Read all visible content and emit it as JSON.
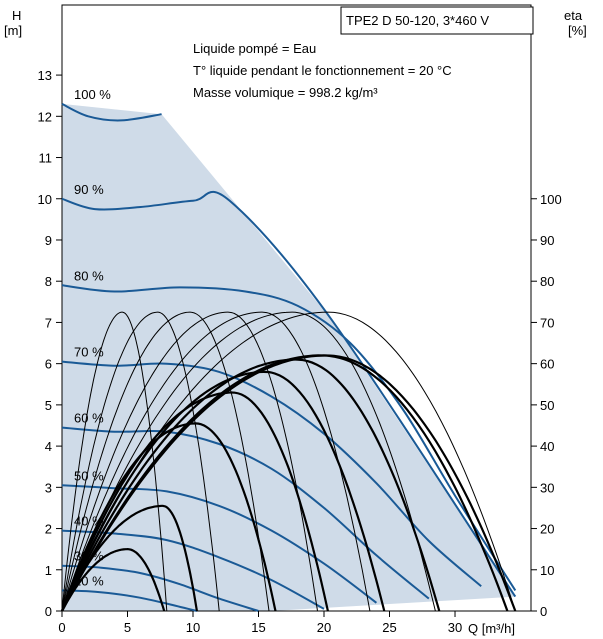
{
  "chart_data": {
    "type": "line",
    "title": "TPE2 D 50-120, 3*460 V",
    "notes": [
      "Liquide pompé = Eau",
      "T° liquide pendant le fonctionnement = 20 °C",
      "Masse volumique = 998.2 kg/m³"
    ],
    "y_axis": {
      "label_line1": "H",
      "label_line2": "[m]",
      "ticks": [
        0,
        1,
        2,
        3,
        4,
        5,
        6,
        7,
        8,
        9,
        10,
        11,
        12,
        13
      ],
      "range": [
        0,
        14.7
      ]
    },
    "y2_axis": {
      "label_line1": "eta",
      "label_line2": "[%]",
      "ticks": [
        0,
        10,
        20,
        30,
        40,
        50,
        60,
        70,
        80,
        90,
        100
      ],
      "range": [
        0,
        147
      ]
    },
    "x_axis": {
      "label": "Q [m³/h]",
      "ticks": [
        0,
        5,
        10,
        15,
        20,
        25,
        30
      ],
      "range": [
        0,
        35.8
      ]
    },
    "colors": {
      "head": "#1a5a96",
      "fill": "#cfdbe8",
      "efficiency": "#000000",
      "frame": "#000000"
    },
    "operating_region": [
      [
        0,
        12.3
      ],
      [
        7.6,
        12.05
      ],
      [
        20.5,
        7.1
      ],
      [
        34.6,
        0.35
      ],
      [
        16,
        0
      ],
      [
        0,
        0
      ]
    ],
    "head_curves": [
      {
        "name": "100 %",
        "shape": [
          [
            0,
            12.3
          ],
          [
            2,
            12.0
          ],
          [
            4.5,
            11.9
          ],
          [
            7.6,
            12.05
          ]
        ]
      },
      {
        "name": "90 %",
        "shape": [
          [
            0,
            10.0
          ],
          [
            2.5,
            9.75
          ],
          [
            6,
            9.8
          ],
          [
            10,
            9.95
          ],
          [
            12.8,
            9.95
          ],
          [
            20.5,
            7.1
          ],
          [
            34.6,
            0.35
          ]
        ]
      },
      {
        "name": "80 %",
        "shape": [
          [
            0,
            7.9
          ],
          [
            4,
            7.75
          ],
          [
            9,
            7.85
          ],
          [
            14,
            7.75
          ],
          [
            18,
            7.4
          ],
          [
            22,
            6.5
          ],
          [
            26,
            4.9
          ],
          [
            30,
            2.8
          ],
          [
            34.6,
            0.5
          ]
        ]
      },
      {
        "name": "70 %",
        "shape": [
          [
            0,
            6.05
          ],
          [
            4,
            5.95
          ],
          [
            8,
            6.0
          ],
          [
            12,
            5.8
          ],
          [
            16,
            5.2
          ],
          [
            20,
            4.3
          ],
          [
            24,
            3.1
          ],
          [
            28,
            1.7
          ],
          [
            32,
            0.6
          ]
        ]
      },
      {
        "name": "60 %",
        "shape": [
          [
            0,
            4.45
          ],
          [
            4,
            4.35
          ],
          [
            8,
            4.35
          ],
          [
            12,
            4.05
          ],
          [
            16,
            3.45
          ],
          [
            20,
            2.5
          ],
          [
            24,
            1.35
          ],
          [
            28,
            0.3
          ]
        ]
      },
      {
        "name": "50 %",
        "shape": [
          [
            0,
            3.05
          ],
          [
            4,
            2.98
          ],
          [
            8,
            2.9
          ],
          [
            12,
            2.55
          ],
          [
            16,
            1.95
          ],
          [
            20,
            1.15
          ],
          [
            24,
            0.2
          ]
        ]
      },
      {
        "name": "40 %",
        "shape": [
          [
            0,
            1.95
          ],
          [
            4,
            1.88
          ],
          [
            8,
            1.72
          ],
          [
            12,
            1.3
          ],
          [
            16,
            0.75
          ],
          [
            20,
            0.05
          ]
        ]
      },
      {
        "name": "30 %",
        "shape": [
          [
            0,
            1.1
          ],
          [
            3,
            1.05
          ],
          [
            6,
            0.92
          ],
          [
            9,
            0.65
          ],
          [
            12,
            0.3
          ],
          [
            15,
            0.0
          ]
        ]
      },
      {
        "name": "20 %",
        "shape": [
          [
            0,
            0.5
          ],
          [
            2,
            0.48
          ],
          [
            4,
            0.42
          ],
          [
            6,
            0.32
          ],
          [
            8,
            0.18
          ],
          [
            10.3,
            0.0
          ]
        ]
      }
    ],
    "efficiency_curves": {
      "thin": [
        {
          "peak": [
            4.6,
            72.5
          ],
          "end": [
            8
          ]
        },
        {
          "peak": [
            7.3,
            72.5
          ],
          "end": [
            12
          ]
        },
        {
          "peak": [
            9.8,
            72.5
          ],
          "end": [
            15.8
          ]
        },
        {
          "peak": [
            12.7,
            72.5
          ],
          "end": [
            19.5
          ]
        },
        {
          "peak": [
            15.3,
            72.5
          ],
          "end": [
            23.5
          ]
        },
        {
          "peak": [
            17.6,
            72.5
          ],
          "end": [
            28.5
          ]
        },
        {
          "peak": [
            20.3,
            72.5
          ],
          "end": [
            34.6
          ]
        }
      ],
      "thick": [
        {
          "peak": [
            5.0,
            15
          ],
          "end": [
            7.8
          ]
        },
        {
          "peak": [
            7.7,
            25.5
          ],
          "end": [
            10.3
          ]
        },
        {
          "peak": [
            10.2,
            45.5
          ],
          "end": [
            16.3
          ]
        },
        {
          "peak": [
            13.0,
            53
          ],
          "end": [
            20.3
          ]
        },
        {
          "peak": [
            15.5,
            58
          ],
          "end": [
            24.6
          ]
        },
        {
          "peak": [
            17.9,
            61
          ],
          "end": [
            28.8
          ]
        },
        {
          "peak": [
            19.8,
            62
          ],
          "end": [
            34.0
          ]
        },
        {
          "peak": [
            20.2,
            62
          ],
          "end": [
            34.6
          ]
        }
      ]
    }
  }
}
